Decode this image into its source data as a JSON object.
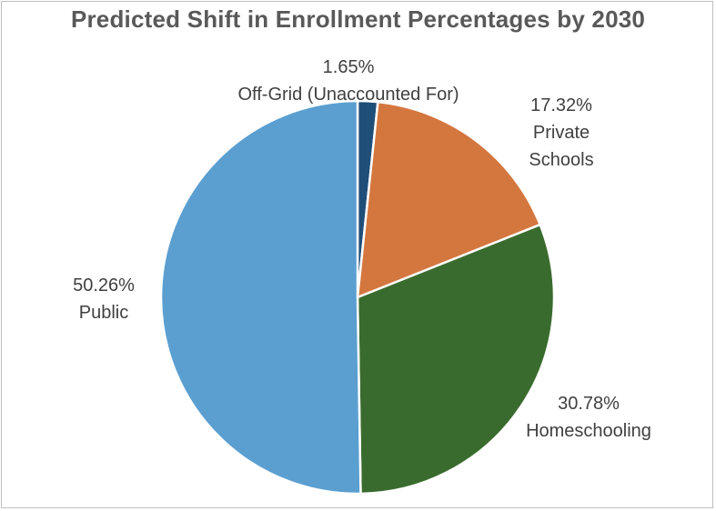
{
  "chart_data": {
    "type": "pie",
    "title": "Predicted Shift in Enrollment Percentages by 2030",
    "categories": [
      "Off-Grid (Unaccounted For)",
      "Private Schools",
      "Homeschooling",
      "Public"
    ],
    "values": [
      1.65,
      17.32,
      30.78,
      50.26
    ],
    "value_labels": [
      "1.65%",
      "17.32%",
      "30.78%",
      "50.26%"
    ],
    "label_lines": [
      [
        "Off-Grid (Unaccounted For)"
      ],
      [
        "Private",
        "Schools"
      ],
      [
        "Homeschooling"
      ],
      [
        "Public"
      ]
    ],
    "colors": [
      "#1f4e79",
      "#d4773f",
      "#3a6b2e",
      "#5b9fd1"
    ],
    "start_angle": "12 o'clock, clockwise",
    "legend": "none"
  }
}
